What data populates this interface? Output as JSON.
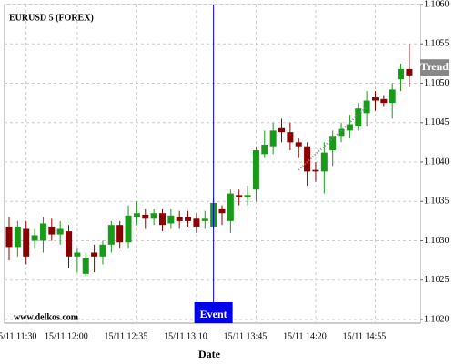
{
  "chart_data": {
    "type": "candlestick",
    "title": "EURUSD 5 (FOREX)",
    "watermark": "www.delkos.com",
    "x_label": "Date",
    "categories": [
      null,
      null,
      "15/11 11:30",
      null,
      null,
      null,
      null,
      null,
      "15/11 12:00",
      null,
      null,
      null,
      null,
      null,
      null,
      "15/11 12:35",
      null,
      null,
      null,
      null,
      null,
      null,
      "15/11 13:10",
      null,
      null,
      null,
      null,
      null,
      null,
      "15/11 13:45",
      null,
      null,
      null,
      null,
      null,
      null,
      "15/11 14:20",
      null,
      null,
      null,
      null,
      null,
      null,
      "15/11 14:55",
      null,
      null,
      null,
      null
    ],
    "open": [
      1.10318,
      1.10292,
      1.10315,
      1.103,
      1.103,
      1.10318,
      1.10308,
      1.10312,
      1.1028,
      1.10258,
      1.10285,
      1.1028,
      1.10295,
      1.1032,
      1.10298,
      1.1033,
      1.10333,
      1.10328,
      1.10335,
      1.10322,
      1.1033,
      1.1033,
      1.10328,
      1.10325,
      1.10318,
      1.1034,
      1.10325,
      1.10358,
      1.10355,
      1.10365,
      1.1041,
      1.1042,
      1.10443,
      1.10438,
      1.10425,
      1.1042,
      1.1039,
      1.10388,
      1.10415,
      1.10432,
      1.1044,
      1.10445,
      1.10462,
      1.10482,
      1.1048,
      1.10475,
      1.10505,
      1.10518
    ],
    "high": [
      1.1033,
      1.10325,
      1.10325,
      1.10315,
      1.1033,
      1.10328,
      1.10325,
      1.1032,
      1.1029,
      1.10285,
      1.10295,
      1.103,
      1.10325,
      1.10325,
      1.10345,
      1.1035,
      1.1034,
      1.1034,
      1.1034,
      1.1034,
      1.10338,
      1.10338,
      1.10335,
      1.10338,
      1.10355,
      1.10345,
      1.10365,
      1.10365,
      1.1037,
      1.1042,
      1.1044,
      1.1045,
      1.10455,
      1.1045,
      1.1043,
      1.10425,
      1.104,
      1.10425,
      1.1044,
      1.1045,
      1.1046,
      1.10475,
      1.1049,
      1.1049,
      1.10485,
      1.105,
      1.10525,
      1.1055
    ],
    "low": [
      1.10275,
      1.1028,
      1.1027,
      1.1029,
      1.10285,
      1.103,
      1.10295,
      1.10265,
      1.1026,
      1.10255,
      1.1026,
      1.1027,
      1.10285,
      1.1029,
      1.1029,
      1.1032,
      1.10315,
      1.1032,
      1.10312,
      1.10315,
      1.10315,
      1.10318,
      1.1031,
      1.10315,
      1.10315,
      1.1032,
      1.1031,
      1.10345,
      1.10345,
      1.1035,
      1.10405,
      1.1041,
      1.10425,
      1.10415,
      1.10405,
      1.1037,
      1.10375,
      1.1036,
      1.10395,
      1.10425,
      1.1043,
      1.1044,
      1.10445,
      1.10465,
      1.1047,
      1.10455,
      1.1049,
      1.10495
    ],
    "close": [
      1.10292,
      1.10318,
      1.1028,
      1.10307,
      1.10322,
      1.10308,
      1.10315,
      1.1028,
      1.10285,
      1.10278,
      1.1028,
      1.10295,
      1.1032,
      1.10298,
      1.10332,
      1.10335,
      1.10328,
      1.10335,
      1.1032,
      1.10332,
      1.10325,
      1.10325,
      1.10318,
      1.10328,
      1.10348,
      1.10335,
      1.1036,
      1.10355,
      1.10358,
      1.10415,
      1.10422,
      1.1044,
      1.10438,
      1.10425,
      1.1042,
      1.10388,
      1.10388,
      1.10412,
      1.10432,
      1.10442,
      1.10448,
      1.10468,
      1.10478,
      1.10478,
      1.10475,
      1.10492,
      1.10518,
      1.1051
    ],
    "up_color": "#1a9a1a",
    "down_color": "#8b0000",
    "ylim": [
      1.102,
      1.106
    ],
    "yticks": [
      {
        "value": 1.102,
        "label": "1.1020"
      },
      {
        "value": 1.1025,
        "label": "1.1025"
      },
      {
        "value": 1.103,
        "label": "1.1030"
      },
      {
        "value": 1.1035,
        "label": "1.1035"
      },
      {
        "value": 1.104,
        "label": "1.1040"
      },
      {
        "value": 1.1045,
        "label": "1.1045"
      },
      {
        "value": 1.105,
        "label": "1.1050"
      },
      {
        "value": 1.1055,
        "label": "1.1055"
      },
      {
        "value": 1.106,
        "label": "1.1060"
      }
    ],
    "grid": true,
    "event": {
      "label": "Event",
      "index": 24,
      "color": "#0000ee"
    },
    "trend": {
      "label": "Trend",
      "start": [
        34,
        1.1039
      ],
      "end": [
        42,
        1.1047
      ],
      "label_value": 1.1052
    }
  }
}
